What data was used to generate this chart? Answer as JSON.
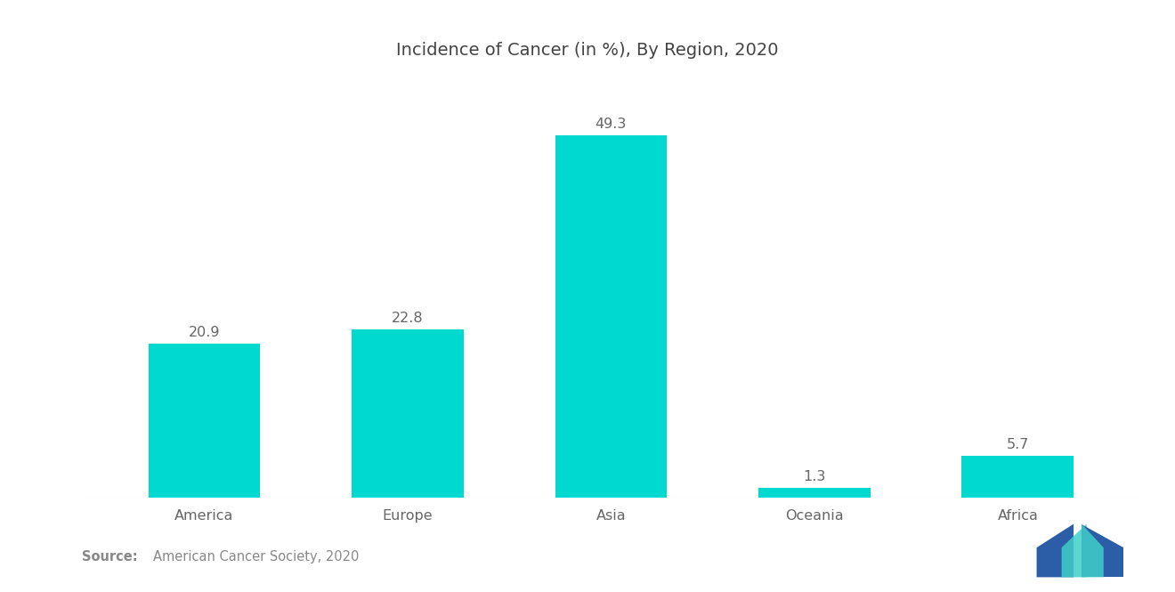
{
  "title": "Incidence of Cancer (in %), By Region, 2020",
  "categories": [
    "America",
    "Europe",
    "Asia",
    "Oceania",
    "Africa"
  ],
  "values": [
    20.9,
    22.8,
    49.3,
    1.3,
    5.7
  ],
  "bar_color": "#00D9D0",
  "background_color": "#ffffff",
  "label_color": "#666666",
  "title_color": "#444444",
  "source_bold": "Source:",
  "source_text": "American Cancer Society, 2020",
  "source_color": "#888888",
  "title_fontsize": 14,
  "label_fontsize": 11.5,
  "value_fontsize": 11.5,
  "source_fontsize": 10.5,
  "ylim": [
    0,
    58
  ],
  "logo_left_color": "#2B5EA7",
  "logo_right_color": "#3ECFC9"
}
